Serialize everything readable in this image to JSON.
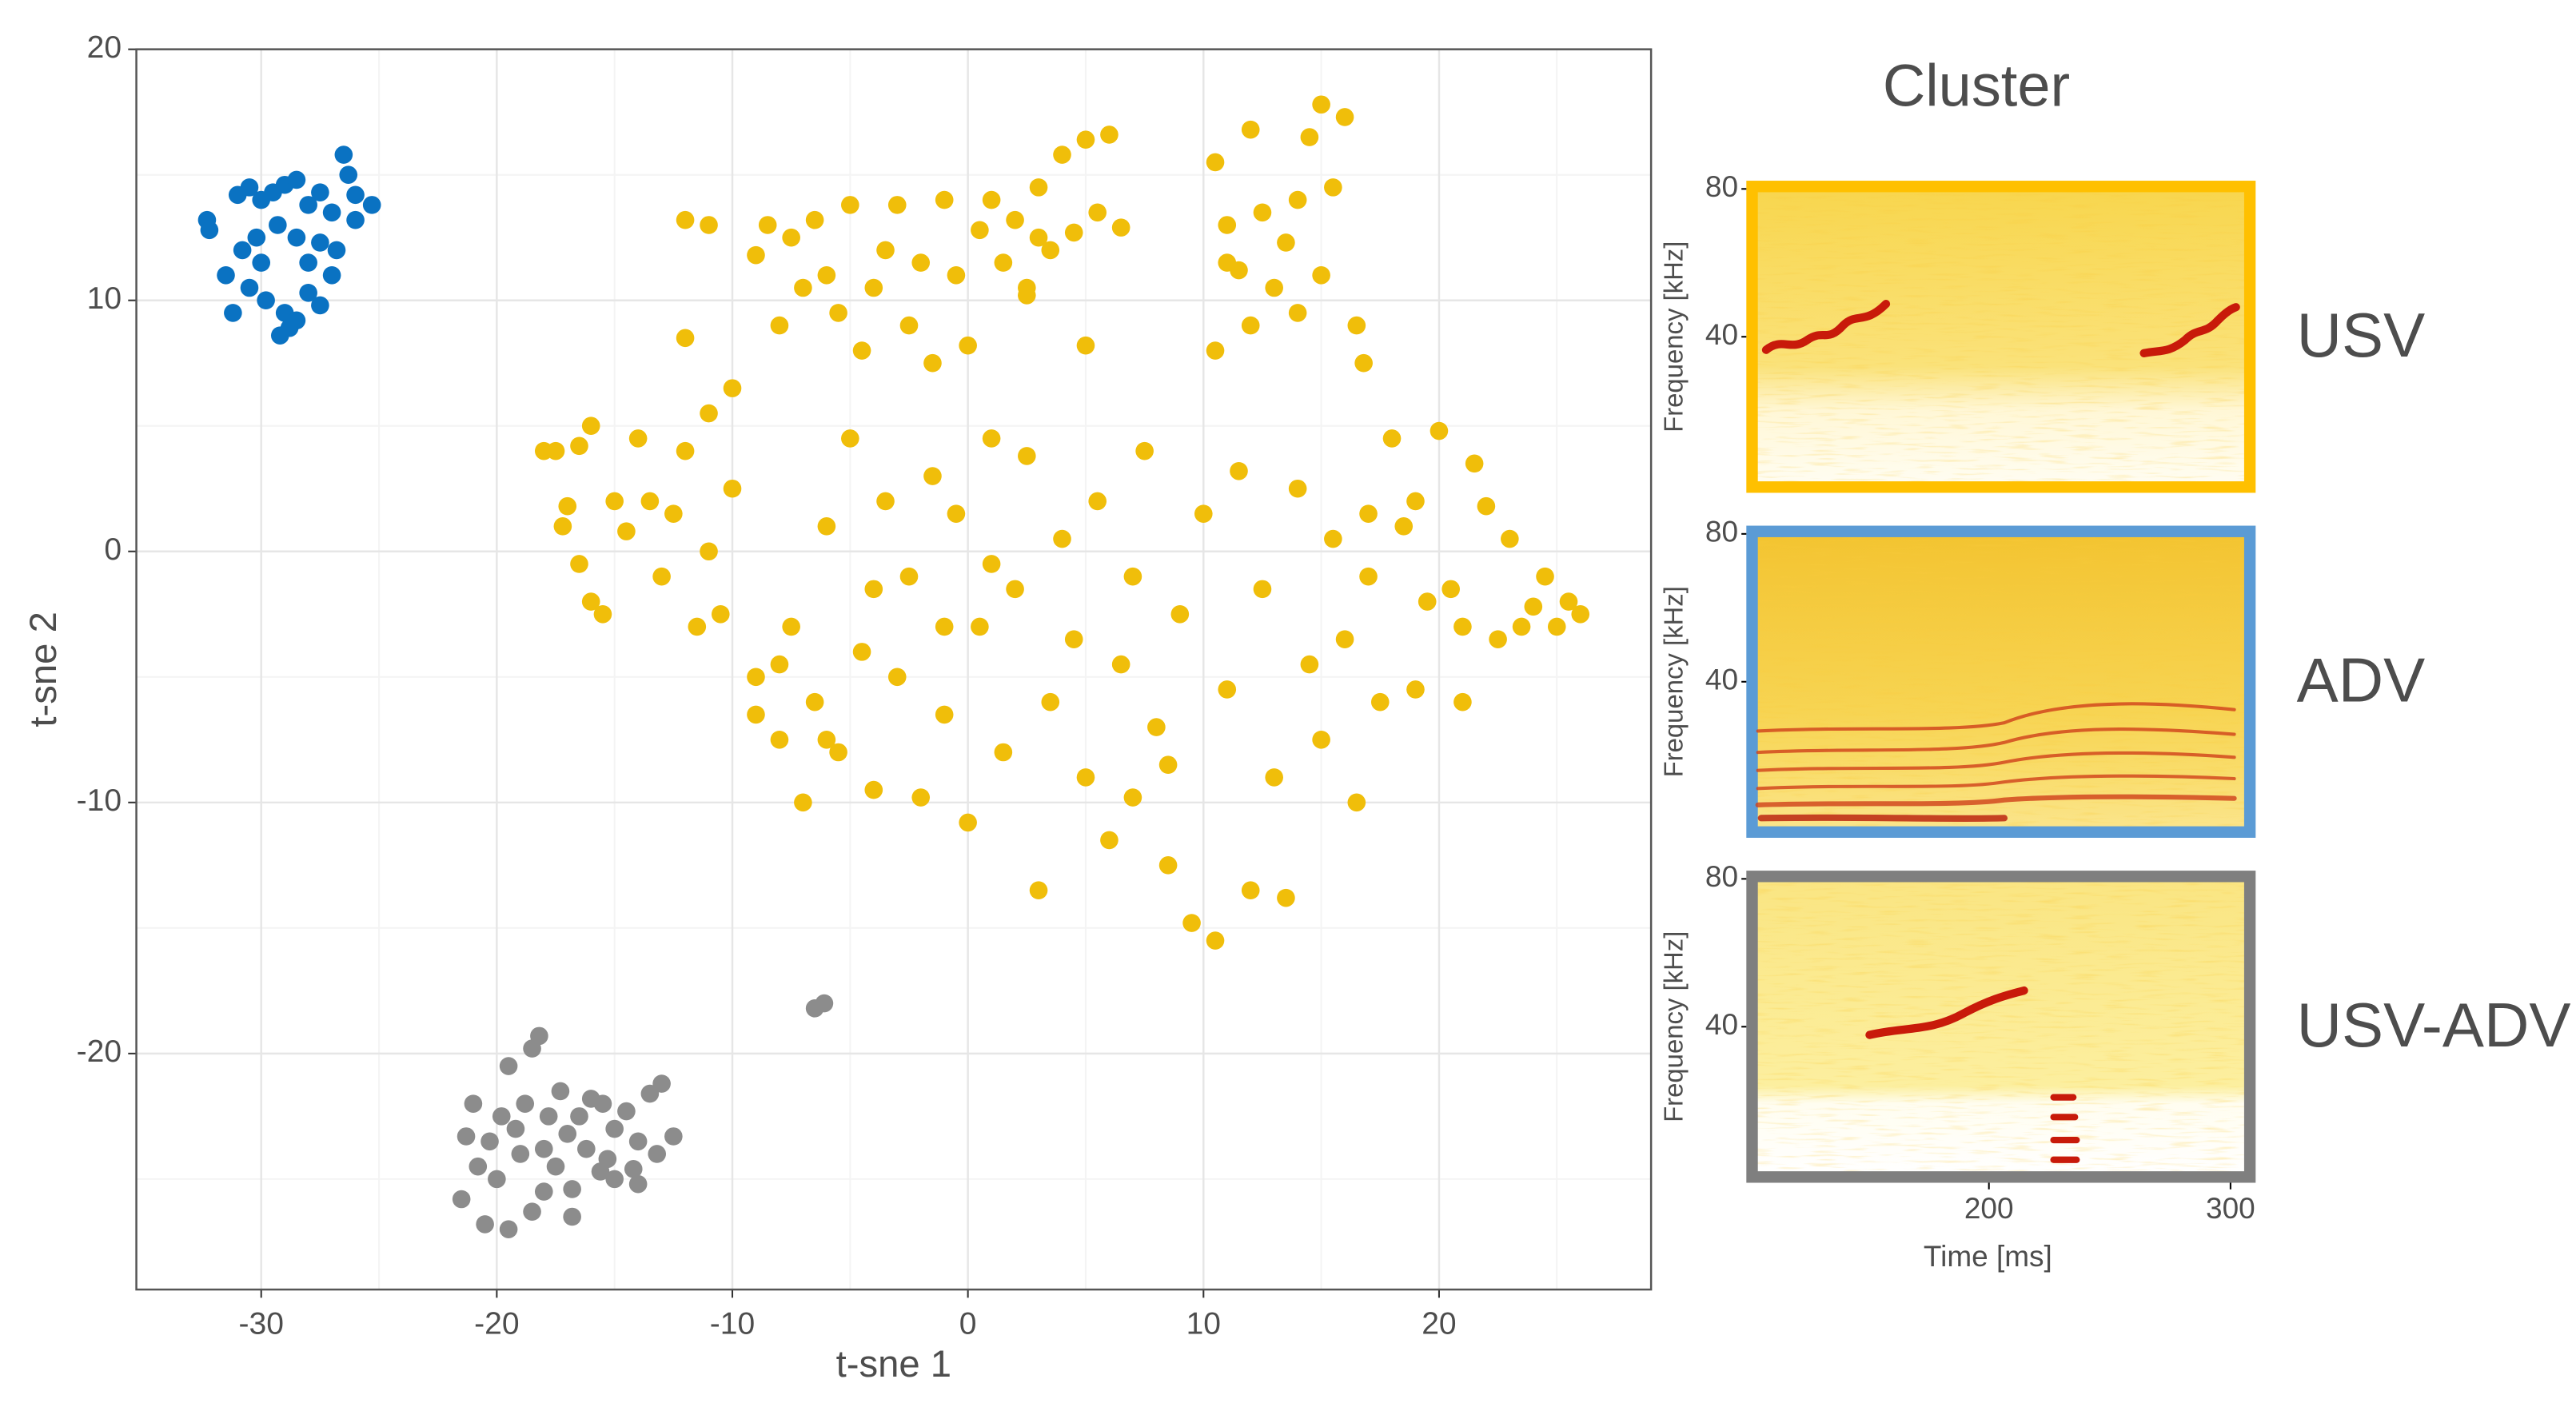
{
  "chart_data": {
    "type": "scatter",
    "xlabel": "t-sne 1",
    "ylabel": "t-sne 2",
    "xlim": [
      -35.3,
      29.0
    ],
    "ylim": [
      -29.4,
      20
    ],
    "xticks": [
      -30,
      -20,
      -10,
      0,
      10,
      20
    ],
    "yticks": [
      -20,
      -10,
      0,
      10,
      20
    ],
    "xminor": [
      -25,
      -15,
      -5,
      5,
      15,
      25
    ],
    "yminor": [
      -25,
      -15,
      -5,
      5,
      15
    ],
    "grid": true,
    "series": [
      {
        "name": "USV",
        "color": "#f0be0a",
        "x": [
          -18,
          -17.5,
          -16.5,
          -16,
          -17,
          -17.2,
          -16.5,
          -16,
          -15.5,
          -15,
          -14.5,
          -14,
          -13.5,
          -13,
          -12.5,
          -12,
          -11.5,
          -11,
          -10.5,
          -10,
          -12,
          -11,
          -12,
          -11,
          -10,
          -9,
          -8.5,
          -8,
          -7.5,
          -7,
          -6.5,
          -6,
          -5.5,
          -5,
          -4.5,
          -4,
          -3.5,
          -3,
          -2.5,
          -2,
          -1.5,
          -1,
          -0.5,
          0,
          0.5,
          1,
          1.5,
          2,
          2.5,
          3,
          3.5,
          4,
          4.5,
          5,
          5.5,
          6,
          6.5,
          2.5,
          5,
          3,
          10.5,
          11,
          11.5,
          12,
          12.5,
          13,
          13.5,
          14,
          14.5,
          15,
          15.5,
          16,
          16.5,
          10.5,
          12,
          15,
          11,
          14,
          16.8,
          -9,
          -8,
          -7.5,
          -7,
          -6.5,
          -6,
          -5.5,
          -5,
          -4.5,
          -4,
          -3.5,
          -3,
          -2.5,
          -2,
          -1.5,
          -1,
          -0.5,
          0,
          0.5,
          1,
          1.5,
          2,
          2.5,
          3,
          3.5,
          4,
          4.5,
          5,
          5.5,
          6,
          6.5,
          7,
          7.5,
          8,
          8.5,
          9,
          9.5,
          10,
          10.5,
          11,
          11.5,
          12,
          12.5,
          13,
          13.5,
          14,
          14.5,
          15,
          15.5,
          16,
          16.5,
          17,
          17.5,
          18,
          18.5,
          19,
          19.5,
          20,
          20.5,
          21,
          21.5,
          22,
          22.5,
          23,
          24,
          25,
          26,
          25.5,
          24.5,
          23.5,
          21,
          19,
          17,
          8.5,
          7,
          1,
          -1,
          -4,
          -8,
          -9,
          -6
        ],
        "values": [
          4,
          4,
          4.2,
          5,
          1.8,
          1,
          -0.5,
          -2,
          -2.5,
          2,
          0.8,
          4.5,
          2,
          -1,
          1.5,
          4,
          -3,
          0,
          -2.5,
          2.5,
          13.2,
          13,
          8.5,
          5.5,
          6.5,
          11.8,
          13,
          9,
          12.5,
          10.5,
          13.2,
          11,
          9.5,
          13.8,
          8,
          10.5,
          12,
          13.8,
          9,
          11.5,
          7.5,
          14,
          11,
          8.2,
          12.8,
          14,
          11.5,
          13.2,
          10.2,
          14.5,
          12,
          15.8,
          12.7,
          16.4,
          13.5,
          16.6,
          12.9,
          10.5,
          8.2,
          12.5,
          15.5,
          13,
          11.2,
          16.8,
          13.5,
          10.5,
          12.3,
          9.5,
          16.5,
          17.8,
          14.5,
          17.3,
          9,
          8,
          9,
          11,
          11.5,
          14,
          7.5,
          -5,
          -7.5,
          -3,
          -10,
          -6,
          1,
          -8,
          4.5,
          -4,
          -9.5,
          2,
          -5,
          -1,
          -9.8,
          3,
          -6.5,
          1.5,
          -10.8,
          -3,
          4.5,
          -8,
          -1.5,
          3.8,
          -13.5,
          -6,
          0.5,
          -3.5,
          -9,
          2,
          -11.5,
          -4.5,
          -1,
          4,
          -7,
          -12.5,
          -2.5,
          -14.8,
          1.5,
          -15.5,
          -5.5,
          3.2,
          -13.5,
          -1.5,
          -9,
          -13.8,
          2.5,
          -4.5,
          -7.5,
          0.5,
          -3.5,
          -10,
          -1,
          -6,
          4.5,
          1,
          -5.5,
          -2,
          4.8,
          -1.5,
          -6,
          3.5,
          1.8,
          -3.5,
          0.5,
          -2.2,
          -3,
          -2.5,
          -2,
          -1,
          -3,
          -3,
          2,
          1.5,
          -8.5,
          -9.8,
          -0.5,
          -3,
          -1.5,
          -4.5,
          -6.5,
          -7.5
        ]
      },
      {
        "name": "ADV",
        "color": "#0a72c2",
        "x": [
          -32.3,
          -32.2,
          -31,
          -30.5,
          -30,
          -29.5,
          -29,
          -28.5,
          -27.5,
          -26.5,
          -26.3,
          -26,
          -25.3,
          -26,
          -27,
          -28,
          -29.3,
          -30.2,
          -30.8,
          -31.5,
          -30.5,
          -29.8,
          -29,
          -28.5,
          -29.2,
          -28.8,
          -31.2,
          -30,
          -28,
          -27.5,
          -27,
          -28,
          -27.5,
          -26.8,
          -28.5
        ],
        "values": [
          13.2,
          12.8,
          14.2,
          14.5,
          14,
          14.3,
          14.6,
          14.8,
          14.3,
          15.8,
          15,
          14.2,
          13.8,
          13.2,
          13.5,
          13.8,
          13,
          12.5,
          12,
          11,
          10.5,
          10,
          9.5,
          9.2,
          8.6,
          8.9,
          9.5,
          11.5,
          11.5,
          12.3,
          11,
          10.3,
          9.8,
          12,
          12.5
        ]
      },
      {
        "name": "USV-ADV",
        "color": "#8c8c8c",
        "x": [
          -18.2,
          -18.5,
          -19.5,
          -21,
          -21.3,
          -21.5,
          -20.5,
          -19.5,
          -20,
          -19,
          -18.5,
          -18,
          -17.5,
          -17,
          -16.5,
          -16,
          -15.5,
          -15,
          -14.5,
          -14,
          -13.5,
          -13,
          -12.5,
          -13.2,
          -14.2,
          -15,
          -15.6,
          -16.8,
          -17.8,
          -18.8,
          -19.8,
          -20.3,
          -19.2,
          -17.3,
          -16.2,
          -15.3,
          -18,
          -20.8,
          -14,
          -16.8,
          -6.5,
          -6.1
        ],
        "values": [
          -19.3,
          -19.8,
          -20.5,
          -22,
          -23.3,
          -25.8,
          -26.8,
          -27,
          -25,
          -24,
          -26.3,
          -25.5,
          -24.5,
          -23.2,
          -22.5,
          -21.8,
          -22,
          -23,
          -22.3,
          -23.5,
          -21.6,
          -21.2,
          -23.3,
          -24,
          -24.6,
          -25,
          -24.7,
          -25.4,
          -22.5,
          -22,
          -22.5,
          -23.5,
          -23,
          -21.5,
          -23.8,
          -24.2,
          -23.8,
          -24.5,
          -25.2,
          -26.5,
          -18.2,
          -18
        ]
      }
    ],
    "spectrograms": {
      "title": "Cluster",
      "ylabel": "Frequency [kHz]",
      "ylim": [
        0,
        80
      ],
      "yticks": [
        40,
        80
      ],
      "xlabel": "Time [ms]",
      "xlim": [
        103,
        307
      ],
      "xticks": [
        200,
        300
      ],
      "frame_colors": [
        "#ffc000",
        "#5b9bd5",
        "#7f7f7f"
      ]
    }
  }
}
